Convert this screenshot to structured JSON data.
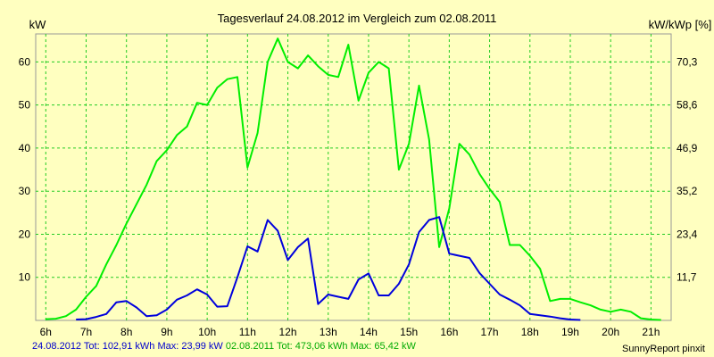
{
  "chart_data": {
    "type": "line",
    "title": "Tagesverlauf 24.08.2012 im Vergleich zum 02.08.2011",
    "ylabel_left": "kW",
    "ylabel_right": "kW/kWp [%]",
    "ylim": [
      0,
      66.5
    ],
    "y_ticks": [
      10,
      20,
      30,
      40,
      50,
      60
    ],
    "y_right_ticks": [
      "11,7",
      "23,4",
      "35,2",
      "46,9",
      "58,6",
      "70,3"
    ],
    "xlim": [
      "05:45",
      "21:30"
    ],
    "x_ticks": [
      "6h",
      "7h",
      "8h",
      "9h",
      "10h",
      "11h",
      "12h",
      "13h",
      "14h",
      "15h",
      "16h",
      "17h",
      "18h",
      "19h",
      "20h",
      "21h"
    ],
    "grid": true,
    "colors": {
      "background": "#ffffc0",
      "grid": "#22cc22",
      "series1": "#0000dd",
      "series2": "#00ee00"
    },
    "series": [
      {
        "name": "24.08.2012",
        "color": "#0000dd",
        "x": [
          "06:45",
          "07:00",
          "07:15",
          "07:30",
          "07:45",
          "08:00",
          "08:15",
          "08:30",
          "08:45",
          "09:00",
          "09:15",
          "09:30",
          "09:45",
          "10:00",
          "10:15",
          "10:30",
          "10:45",
          "11:00",
          "11:15",
          "11:30",
          "11:45",
          "12:00",
          "12:15",
          "12:30",
          "12:45",
          "13:00",
          "13:15",
          "13:30",
          "13:45",
          "14:00",
          "14:15",
          "14:30",
          "14:45",
          "15:00",
          "15:15",
          "15:30",
          "15:45",
          "16:00",
          "16:15",
          "16:30",
          "16:45",
          "17:00",
          "17:15",
          "17:30",
          "17:45",
          "18:00",
          "18:15",
          "18:30",
          "18:45",
          "19:00",
          "19:15"
        ],
        "values": [
          0.2,
          0.3,
          0.8,
          1.5,
          4.2,
          4.5,
          3.0,
          1.0,
          1.2,
          2.5,
          4.8,
          5.8,
          7.2,
          6.0,
          3.2,
          3.3,
          10.0,
          17.2,
          16.0,
          23.3,
          20.8,
          14.0,
          17.0,
          19.0,
          3.8,
          6.0,
          5.5,
          5.0,
          9.5,
          10.9,
          5.8,
          5.8,
          8.5,
          13.0,
          20.5,
          23.3,
          23.99,
          15.5,
          15.0,
          14.5,
          11.0,
          8.5,
          6.0,
          4.8,
          3.5,
          1.5,
          1.2,
          0.9,
          0.5,
          0.2,
          0.1
        ]
      },
      {
        "name": "02.08.2011",
        "color": "#00ee00",
        "x": [
          "06:00",
          "06:15",
          "06:30",
          "06:45",
          "07:00",
          "07:15",
          "07:30",
          "07:45",
          "08:00",
          "08:15",
          "08:30",
          "08:45",
          "09:00",
          "09:15",
          "09:30",
          "09:45",
          "10:00",
          "10:15",
          "10:30",
          "10:45",
          "11:00",
          "11:15",
          "11:30",
          "11:45",
          "12:00",
          "12:15",
          "12:30",
          "12:45",
          "13:00",
          "13:15",
          "13:30",
          "13:45",
          "14:00",
          "14:15",
          "14:30",
          "14:45",
          "15:00",
          "15:15",
          "15:30",
          "15:45",
          "16:00",
          "16:15",
          "16:30",
          "16:45",
          "17:00",
          "17:15",
          "17:30",
          "17:45",
          "18:00",
          "18:15",
          "18:30",
          "18:45",
          "19:00",
          "19:15",
          "19:30",
          "19:45",
          "20:00",
          "20:15",
          "20:30",
          "20:45",
          "21:00",
          "21:15"
        ],
        "values": [
          0.3,
          0.4,
          1.0,
          2.5,
          5.5,
          8.0,
          13.0,
          17.5,
          22.5,
          27.0,
          31.5,
          37.0,
          39.5,
          43.0,
          45.0,
          50.5,
          50.0,
          54.0,
          56.0,
          56.5,
          35.5,
          43.5,
          60.0,
          65.42,
          60.0,
          58.5,
          61.5,
          59.0,
          57.0,
          56.5,
          64.0,
          51.0,
          57.5,
          60.0,
          58.5,
          35.0,
          41.0,
          54.5,
          42.0,
          17.0,
          26.0,
          41.0,
          38.5,
          34.0,
          30.5,
          27.5,
          17.5,
          17.5,
          15.0,
          12.0,
          4.5,
          5.0,
          5.0,
          4.2,
          3.5,
          2.5,
          2.0,
          2.5,
          2.0,
          0.5,
          0.2,
          0.1
        ]
      }
    ]
  },
  "footer": {
    "s1_label": "24.08.2012 Tot: 102,91 kWh Max: 23,99 kW",
    "s2_label": "02.08.2011 Tot: 473,06 kWh Max: 65,42 kW",
    "credit": "SunnyReport pinxit"
  }
}
